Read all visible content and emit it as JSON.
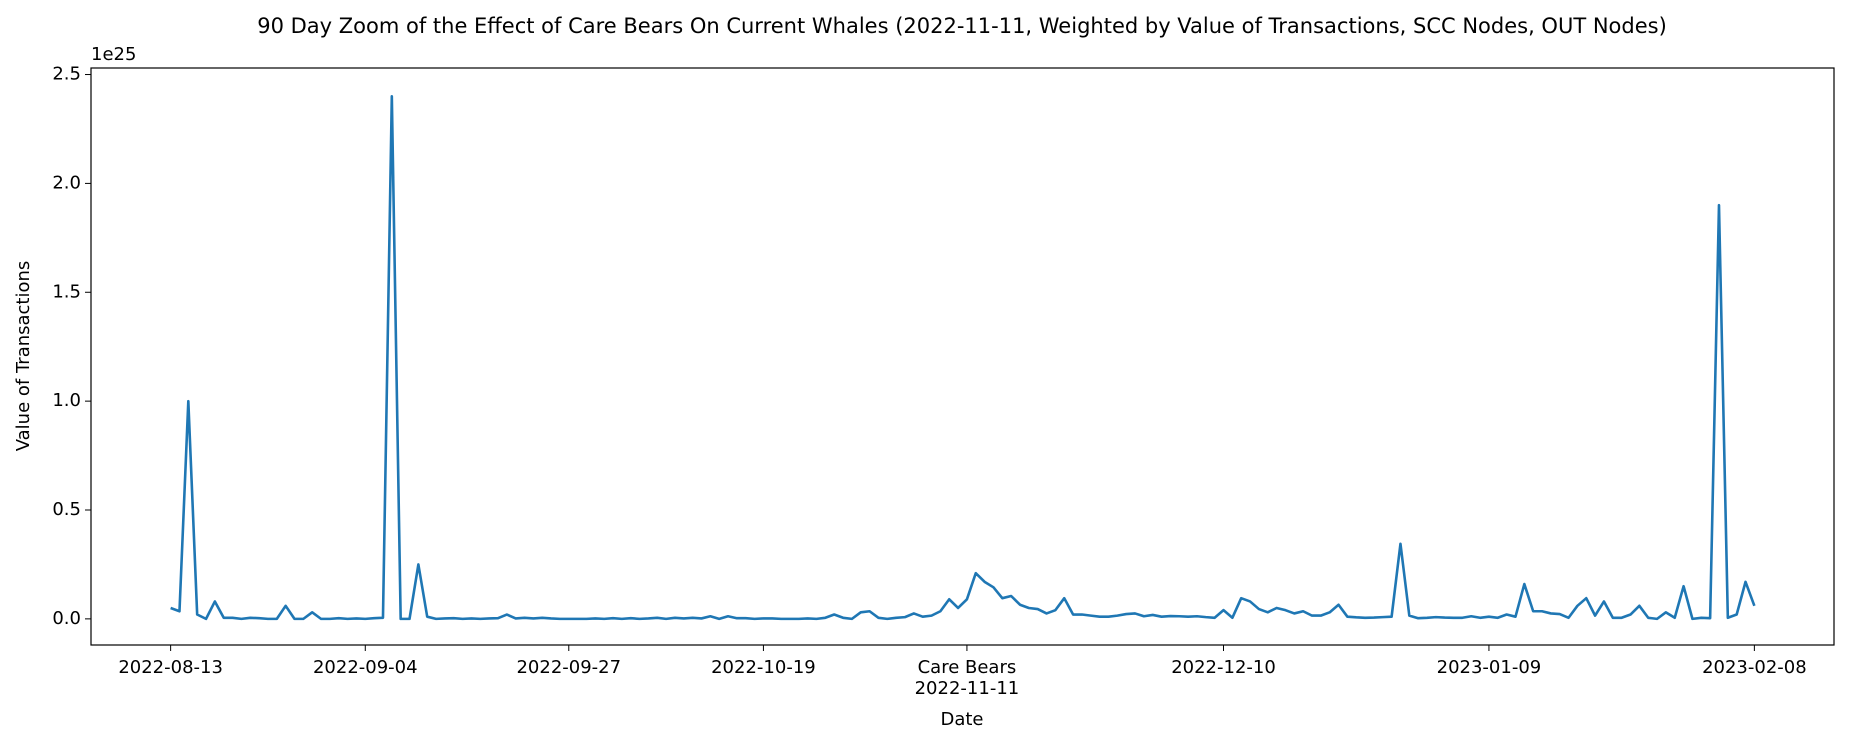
{
  "chart_data": {
    "type": "line",
    "title": "90 Day Zoom of the Effect of Care Bears On Current Whales (2022-11-11, Weighted by Value of Transactions, SCC Nodes, OUT Nodes)",
    "x_label": "Date",
    "y_label": "Value of Transactions",
    "y_offset_label": "1e25",
    "color": "#1f77b4",
    "x": [
      "2022-08-13",
      "2022-08-14",
      "2022-08-15",
      "2022-08-16",
      "2022-08-17",
      "2022-08-18",
      "2022-08-19",
      "2022-08-20",
      "2022-08-21",
      "2022-08-22",
      "2022-08-23",
      "2022-08-24",
      "2022-08-25",
      "2022-08-26",
      "2022-08-27",
      "2022-08-28",
      "2022-08-29",
      "2022-08-30",
      "2022-08-31",
      "2022-09-01",
      "2022-09-02",
      "2022-09-03",
      "2022-09-04",
      "2022-09-05",
      "2022-09-06",
      "2022-09-07",
      "2022-09-08",
      "2022-09-09",
      "2022-09-10",
      "2022-09-11",
      "2022-09-12",
      "2022-09-13",
      "2022-09-14",
      "2022-09-15",
      "2022-09-16",
      "2022-09-17",
      "2022-09-18",
      "2022-09-19",
      "2022-09-20",
      "2022-09-21",
      "2022-09-22",
      "2022-09-23",
      "2022-09-24",
      "2022-09-25",
      "2022-09-26",
      "2022-09-27",
      "2022-09-28",
      "2022-09-29",
      "2022-09-30",
      "2022-10-01",
      "2022-10-02",
      "2022-10-03",
      "2022-10-04",
      "2022-10-05",
      "2022-10-06",
      "2022-10-07",
      "2022-10-08",
      "2022-10-09",
      "2022-10-10",
      "2022-10-11",
      "2022-10-12",
      "2022-10-13",
      "2022-10-14",
      "2022-10-15",
      "2022-10-16",
      "2022-10-17",
      "2022-10-18",
      "2022-10-19",
      "2022-10-20",
      "2022-10-21",
      "2022-10-22",
      "2022-10-23",
      "2022-10-24",
      "2022-10-25",
      "2022-10-26",
      "2022-10-27",
      "2022-10-28",
      "2022-10-29",
      "2022-10-30",
      "2022-10-31",
      "2022-11-01",
      "2022-11-02",
      "2022-11-03",
      "2022-11-04",
      "2022-11-05",
      "2022-11-06",
      "2022-11-07",
      "2022-11-08",
      "2022-11-09",
      "2022-11-10",
      "2022-11-11",
      "2022-11-12",
      "2022-11-13",
      "2022-11-14",
      "2022-11-15",
      "2022-11-16",
      "2022-11-17",
      "2022-11-18",
      "2022-11-19",
      "2022-11-20",
      "2022-11-21",
      "2022-11-22",
      "2022-11-23",
      "2022-11-24",
      "2022-11-25",
      "2022-11-26",
      "2022-11-27",
      "2022-11-28",
      "2022-11-29",
      "2022-11-30",
      "2022-12-01",
      "2022-12-02",
      "2022-12-03",
      "2022-12-04",
      "2022-12-05",
      "2022-12-06",
      "2022-12-07",
      "2022-12-08",
      "2022-12-09",
      "2022-12-10",
      "2022-12-11",
      "2022-12-12",
      "2022-12-13",
      "2022-12-14",
      "2022-12-15",
      "2022-12-16",
      "2022-12-17",
      "2022-12-18",
      "2022-12-19",
      "2022-12-20",
      "2022-12-21",
      "2022-12-22",
      "2022-12-23",
      "2022-12-24",
      "2022-12-25",
      "2022-12-26",
      "2022-12-27",
      "2022-12-28",
      "2022-12-29",
      "2022-12-30",
      "2022-12-31",
      "2023-01-01",
      "2023-01-02",
      "2023-01-03",
      "2023-01-04",
      "2023-01-05",
      "2023-01-06",
      "2023-01-07",
      "2023-01-08",
      "2023-01-09",
      "2023-01-10",
      "2023-01-11",
      "2023-01-12",
      "2023-01-13",
      "2023-01-14",
      "2023-01-15",
      "2023-01-16",
      "2023-01-17",
      "2023-01-18",
      "2023-01-19",
      "2023-01-20",
      "2023-01-21",
      "2023-01-22",
      "2023-01-23",
      "2023-01-24",
      "2023-01-25",
      "2023-01-26",
      "2023-01-27",
      "2023-01-28",
      "2023-01-29",
      "2023-01-30",
      "2023-01-31",
      "2023-02-01",
      "2023-02-02",
      "2023-02-03",
      "2023-02-04",
      "2023-02-05",
      "2023-02-06",
      "2023-02-07",
      "2023-02-08"
    ],
    "values": [
      0.05,
      0.035,
      1.0,
      0.02,
      0.0,
      0.08,
      0.005,
      0.005,
      0.0,
      0.005,
      0.003,
      0.0,
      0.0,
      0.06,
      0.0,
      0.0,
      0.03,
      0.0,
      0.0,
      0.003,
      0.0,
      0.002,
      0.0,
      0.003,
      0.005,
      2.4,
      0.0,
      0.0,
      0.25,
      0.01,
      0.0,
      0.002,
      0.003,
      0.0,
      0.002,
      0.0,
      0.002,
      0.003,
      0.02,
      0.002,
      0.005,
      0.002,
      0.005,
      0.002,
      0.0,
      0.0,
      0.0,
      0.0,
      0.002,
      0.0,
      0.003,
      0.0,
      0.003,
      0.0,
      0.002,
      0.005,
      0.0,
      0.005,
      0.002,
      0.005,
      0.002,
      0.012,
      0.0,
      0.012,
      0.003,
      0.003,
      0.0,
      0.002,
      0.002,
      0.0,
      0.0,
      0.0,
      0.002,
      0.0,
      0.005,
      0.02,
      0.005,
      0.0,
      0.03,
      0.035,
      0.005,
      0.0,
      0.005,
      0.008,
      0.025,
      0.01,
      0.015,
      0.035,
      0.09,
      0.05,
      0.09,
      0.21,
      0.17,
      0.145,
      0.095,
      0.105,
      0.065,
      0.05,
      0.045,
      0.025,
      0.04,
      0.095,
      0.02,
      0.02,
      0.015,
      0.01,
      0.01,
      0.015,
      0.022,
      0.025,
      0.012,
      0.018,
      0.01,
      0.013,
      0.012,
      0.01,
      0.012,
      0.008,
      0.005,
      0.04,
      0.005,
      0.095,
      0.08,
      0.045,
      0.03,
      0.05,
      0.04,
      0.025,
      0.035,
      0.015,
      0.015,
      0.03,
      0.065,
      0.01,
      0.007,
      0.005,
      0.006,
      0.008,
      0.01,
      0.345,
      0.015,
      0.003,
      0.005,
      0.008,
      0.006,
      0.005,
      0.005,
      0.012,
      0.005,
      0.01,
      0.005,
      0.02,
      0.01,
      0.16,
      0.035,
      0.035,
      0.025,
      0.022,
      0.005,
      0.06,
      0.095,
      0.015,
      0.08,
      0.005,
      0.005,
      0.02,
      0.06,
      0.005,
      0.0,
      0.03,
      0.005,
      0.15,
      0.0,
      0.005,
      0.003,
      1.9,
      0.005,
      0.02,
      0.17,
      0.06
    ],
    "xlim": [
      "2022-08-04",
      "2023-02-17"
    ],
    "xticks": [
      "2022-08-13",
      "2022-09-04",
      "2022-09-27",
      "2022-10-19",
      {
        "value": "2022-11-11",
        "label": [
          "Care Bears",
          "2022-11-11"
        ]
      },
      "2022-12-10",
      "2023-01-09",
      "2023-02-08"
    ],
    "ylim": [
      -0.12,
      2.53
    ],
    "yticks": [
      {
        "value": 0,
        "label": "0.0"
      },
      0.5,
      {
        "value": 1,
        "label": "1.0"
      },
      1.5,
      {
        "value": 2,
        "label": "2.0"
      },
      2.5
    ],
    "grid": false
  }
}
